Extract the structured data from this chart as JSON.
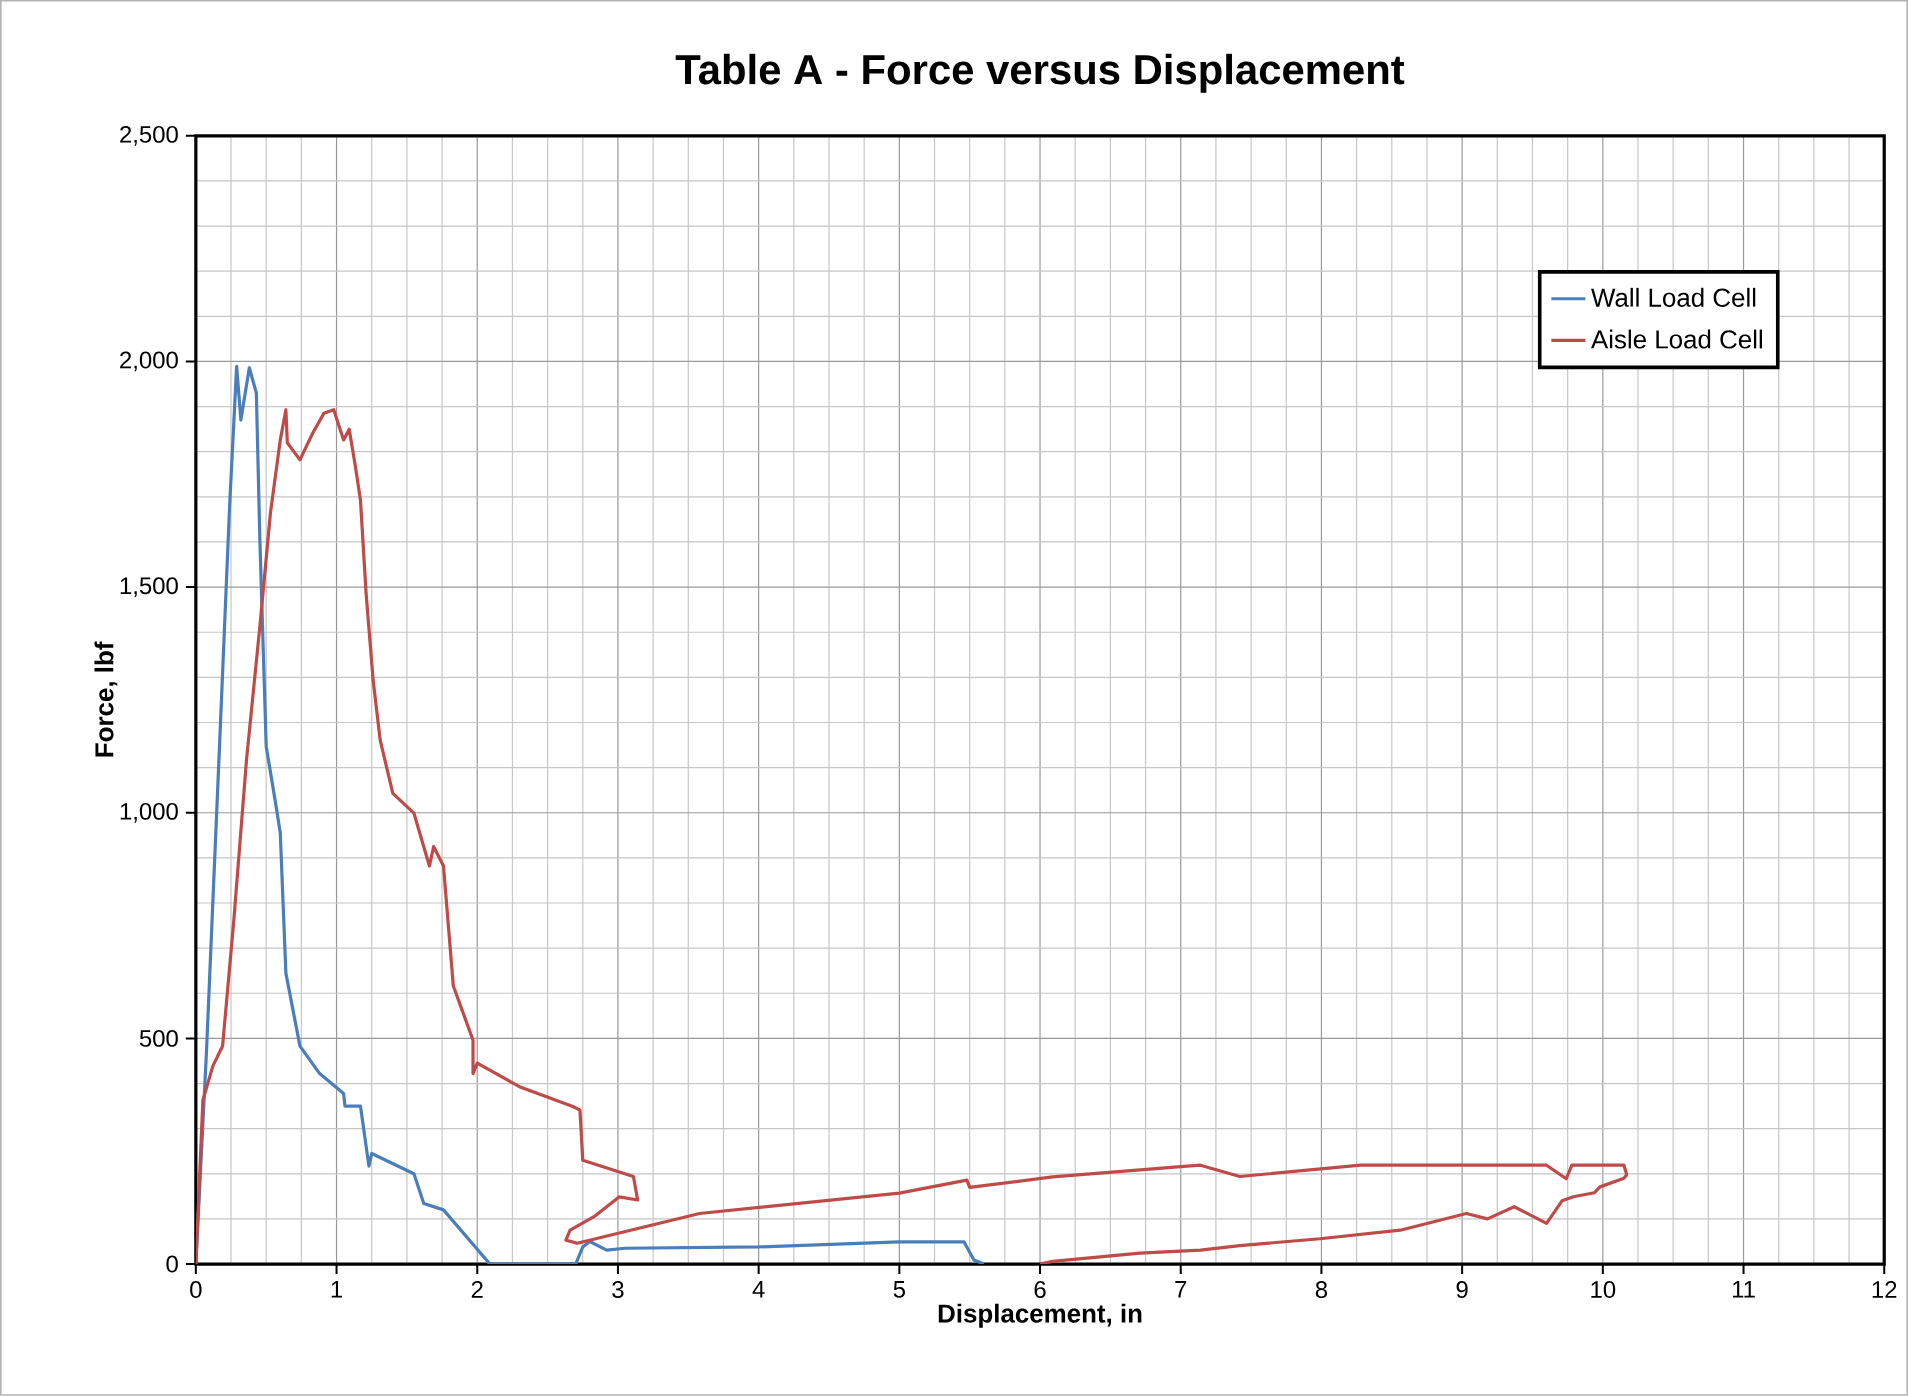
{
  "chart_data": {
    "type": "line",
    "title": "Table A - Force versus Displacement",
    "xlabel": "Displacement, in",
    "ylabel": "Force, lbf",
    "xlim": [
      0,
      12
    ],
    "xticks": [
      0,
      1,
      2,
      3,
      4,
      5,
      6,
      7,
      8,
      9,
      10,
      11,
      12
    ],
    "ylim": [
      0,
      2500
    ],
    "yticks": [
      0,
      500,
      {
        "value": 1000,
        "label": "1,000"
      },
      {
        "value": 1500,
        "label": "1,500"
      },
      {
        "value": 2000,
        "label": "2,000"
      },
      {
        "value": 2500,
        "label": "2,500"
      }
    ],
    "grid": true,
    "legend": "top right",
    "marker": "none",
    "line_style": "solid",
    "series": [
      {
        "name": "Wall Load Cell",
        "color": "#4a7ebb",
        "x": [
          0,
          0.075,
          0.17,
          0.24,
          0.29,
          0.32,
          0.38,
          0.43,
          0.455,
          0.5,
          0.57,
          0.6,
          0.64,
          0.74,
          0.88,
          1.05,
          1.06,
          1.17,
          1.23,
          1.25,
          1.55,
          1.62,
          1.76,
          2.09,
          2.7,
          2.75,
          2.8,
          2.92,
          3.05,
          4.0,
          5.0,
          5.46,
          5.53,
          5.6
        ],
        "values": [
          0,
          467,
          1161,
          1680,
          1989,
          1870,
          1986,
          1930,
          1605,
          1147,
          1015,
          955,
          644,
          483,
          422,
          378,
          350,
          350,
          217,
          245,
          200,
          134,
          120,
          0,
          0,
          38,
          50,
          31,
          35,
          38,
          49,
          49,
          9,
          0
        ]
      },
      {
        "name": "Aisle Load Cell",
        "color": "#be4b48",
        "x": [
          0,
          0.05,
          0.12,
          0.19,
          0.27,
          0.36,
          0.455,
          0.53,
          0.6,
          0.64,
          0.65,
          0.74,
          0.83,
          0.91,
          0.98,
          1.05,
          1.09,
          1.13,
          1.17,
          1.21,
          1.26,
          1.31,
          1.4,
          1.55,
          1.66,
          1.69,
          1.76,
          1.83,
          1.97,
          1.97,
          2.0,
          2.3,
          2.68,
          2.73,
          2.75,
          3.11,
          3.14,
          3.01,
          2.83,
          2.66,
          2.63,
          2.71,
          3.58,
          5.0,
          5.48,
          5.5,
          6.09,
          7.0,
          7.14,
          7.42,
          8.28,
          9.6,
          9.74,
          9.78,
          10.15,
          10.17,
          10.15,
          9.98,
          9.94,
          9.79,
          9.71,
          9.6,
          9.37,
          9.18,
          9.03,
          8.56,
          7.99,
          7.42,
          7.14,
          6.71,
          6.09,
          6.0
        ],
        "values": [
          0,
          363,
          438,
          483,
          762,
          1117,
          1413,
          1664,
          1826,
          1893,
          1820,
          1782,
          1841,
          1885,
          1893,
          1826,
          1850,
          1775,
          1693,
          1486,
          1294,
          1161,
          1043,
          999,
          882,
          925,
          882,
          616,
          496,
          422,
          445,
          393,
          349,
          341,
          230,
          194,
          142,
          149,
          105,
          75,
          53,
          46,
          112,
          157,
          186,
          170,
          193,
          216,
          219,
          194,
          219,
          219,
          189,
          219,
          219,
          198,
          190,
          171,
          158,
          149,
          140,
          90,
          127,
          100,
          112,
          75,
          56,
          41,
          31,
          24,
          6,
          0
        ]
      }
    ]
  }
}
